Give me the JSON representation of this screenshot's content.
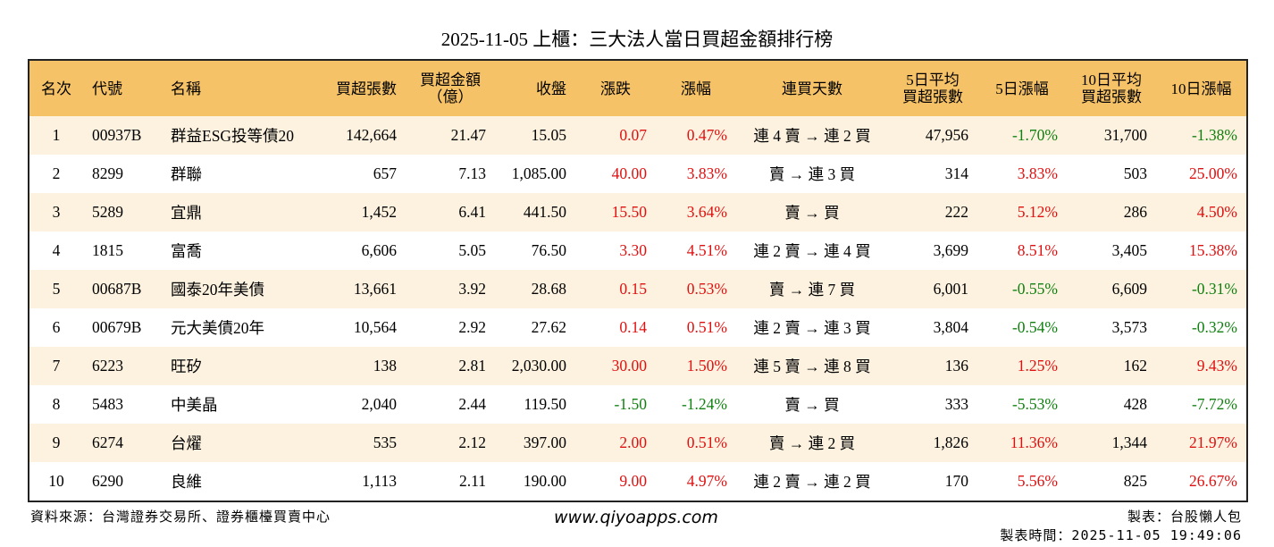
{
  "title": "2025-11-05 上櫃：三大法人當日買超金額排行榜",
  "table": {
    "header": [
      [
        "名次"
      ],
      [
        "代號"
      ],
      [
        "名稱"
      ],
      [
        "買超張數"
      ],
      [
        "買超金額",
        "（億）"
      ],
      [
        "收盤"
      ],
      [
        "漲跌"
      ],
      [
        "漲幅"
      ],
      [
        "連買天數"
      ],
      [
        "5日平均",
        "買超張數"
      ],
      [
        "5日漲幅"
      ],
      [
        "10日平均",
        "買超張數"
      ],
      [
        "10日漲幅"
      ]
    ],
    "rows": [
      [
        "1",
        "00937B",
        "群益ESG投等債20",
        "142,664",
        "21.47",
        "15.05",
        "0.07",
        "0.47%",
        "連 4 賣 → 連 2 買",
        "47,956",
        "-1.70%",
        "31,700",
        "-1.38%"
      ],
      [
        "2",
        "8299",
        "群聯",
        "657",
        "7.13",
        "1,085.00",
        "40.00",
        "3.83%",
        "賣 → 連 3 買",
        "314",
        "3.83%",
        "503",
        "25.00%"
      ],
      [
        "3",
        "5289",
        "宜鼎",
        "1,452",
        "6.41",
        "441.50",
        "15.50",
        "3.64%",
        "賣 → 買",
        "222",
        "5.12%",
        "286",
        "4.50%"
      ],
      [
        "4",
        "1815",
        "富喬",
        "6,606",
        "5.05",
        "76.50",
        "3.30",
        "4.51%",
        "連 2 賣 → 連 4 買",
        "3,699",
        "8.51%",
        "3,405",
        "15.38%"
      ],
      [
        "5",
        "00687B",
        "國泰20年美債",
        "13,661",
        "3.92",
        "28.68",
        "0.15",
        "0.53%",
        "賣 → 連 7 買",
        "6,001",
        "-0.55%",
        "6,609",
        "-0.31%"
      ],
      [
        "6",
        "00679B",
        "元大美債20年",
        "10,564",
        "2.92",
        "27.62",
        "0.14",
        "0.51%",
        "連 2 賣 → 連 3 買",
        "3,804",
        "-0.54%",
        "3,573",
        "-0.32%"
      ],
      [
        "7",
        "6223",
        "旺矽",
        "138",
        "2.81",
        "2,030.00",
        "30.00",
        "1.50%",
        "連 5 賣 → 連 8 買",
        "136",
        "1.25%",
        "162",
        "9.43%"
      ],
      [
        "8",
        "5483",
        "中美晶",
        "2,040",
        "2.44",
        "119.50",
        "-1.50",
        "-1.24%",
        "賣 → 買",
        "333",
        "-5.53%",
        "428",
        "-7.72%"
      ],
      [
        "9",
        "6274",
        "台燿",
        "535",
        "2.12",
        "397.00",
        "2.00",
        "0.51%",
        "賣 → 連 2 買",
        "1,826",
        "11.36%",
        "1,344",
        "21.97%"
      ],
      [
        "10",
        "6290",
        "良維",
        "1,113",
        "2.11",
        "190.00",
        "9.00",
        "4.97%",
        "連 2 賣 → 連 2 買",
        "170",
        "5.56%",
        "825",
        "26.67%"
      ]
    ]
  },
  "footer": {
    "source": "資料來源：台灣證券交易所、證券櫃檯買賣中心",
    "url": "www.qiyoapps.com",
    "maker": "製表：台股懶人包",
    "time": "製表時間：2025-11-05 19:49:06"
  }
}
